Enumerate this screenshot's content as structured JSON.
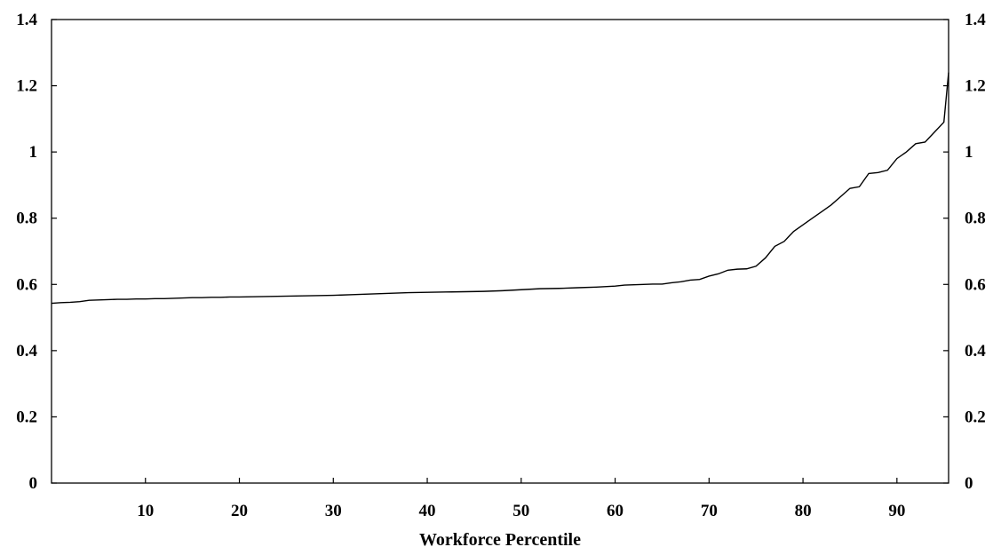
{
  "chart_data": {
    "type": "line",
    "title": "",
    "xlabel": "Workforce Percentile",
    "ylabel": "",
    "xlim": [
      0,
      95.5
    ],
    "ylim": [
      0,
      1.4
    ],
    "x_ticks": [
      10,
      20,
      30,
      40,
      50,
      60,
      70,
      80,
      90
    ],
    "y_ticks_left": [
      "0",
      "0.2",
      "0.4",
      "0.6",
      "0.8",
      "1",
      "1.2",
      "1.4"
    ],
    "y_ticks_right": [
      "0",
      "0.2",
      "0.4",
      "0.6",
      "0.8",
      "1",
      "1.2",
      "1.4"
    ],
    "grid": false,
    "line_color": "#000000",
    "series": [
      {
        "x": [
          0,
          1,
          2,
          3,
          4,
          5,
          6,
          7,
          8,
          9,
          10,
          11,
          12,
          13,
          14,
          15,
          16,
          17,
          18,
          19,
          20,
          22,
          24,
          26,
          28,
          30,
          32,
          34,
          36,
          38,
          40,
          42,
          44,
          46,
          48,
          50,
          52,
          54,
          56,
          58,
          60,
          61,
          62,
          63,
          64,
          65,
          66,
          67,
          68,
          69,
          70,
          71,
          72,
          73,
          74,
          75,
          76,
          77,
          78,
          79,
          80,
          81,
          82,
          83,
          84,
          85,
          86,
          87,
          88,
          89,
          90,
          91,
          92,
          93,
          94,
          95,
          95.5
        ],
        "y": [
          0.543,
          0.545,
          0.546,
          0.548,
          0.552,
          0.553,
          0.554,
          0.555,
          0.555,
          0.556,
          0.556,
          0.557,
          0.557,
          0.558,
          0.559,
          0.56,
          0.56,
          0.561,
          0.561,
          0.562,
          0.562,
          0.563,
          0.564,
          0.565,
          0.566,
          0.567,
          0.569,
          0.571,
          0.573,
          0.575,
          0.576,
          0.577,
          0.578,
          0.579,
          0.581,
          0.584,
          0.587,
          0.588,
          0.59,
          0.592,
          0.595,
          0.598,
          0.599,
          0.6,
          0.601,
          0.601,
          0.605,
          0.608,
          0.613,
          0.615,
          0.625,
          0.632,
          0.643,
          0.646,
          0.647,
          0.655,
          0.68,
          0.715,
          0.73,
          0.76,
          0.78,
          0.8,
          0.82,
          0.84,
          0.865,
          0.89,
          0.895,
          0.935,
          0.938,
          0.945,
          0.98,
          1.0,
          1.025,
          1.03,
          1.06,
          1.09,
          1.24
        ]
      }
    ]
  }
}
